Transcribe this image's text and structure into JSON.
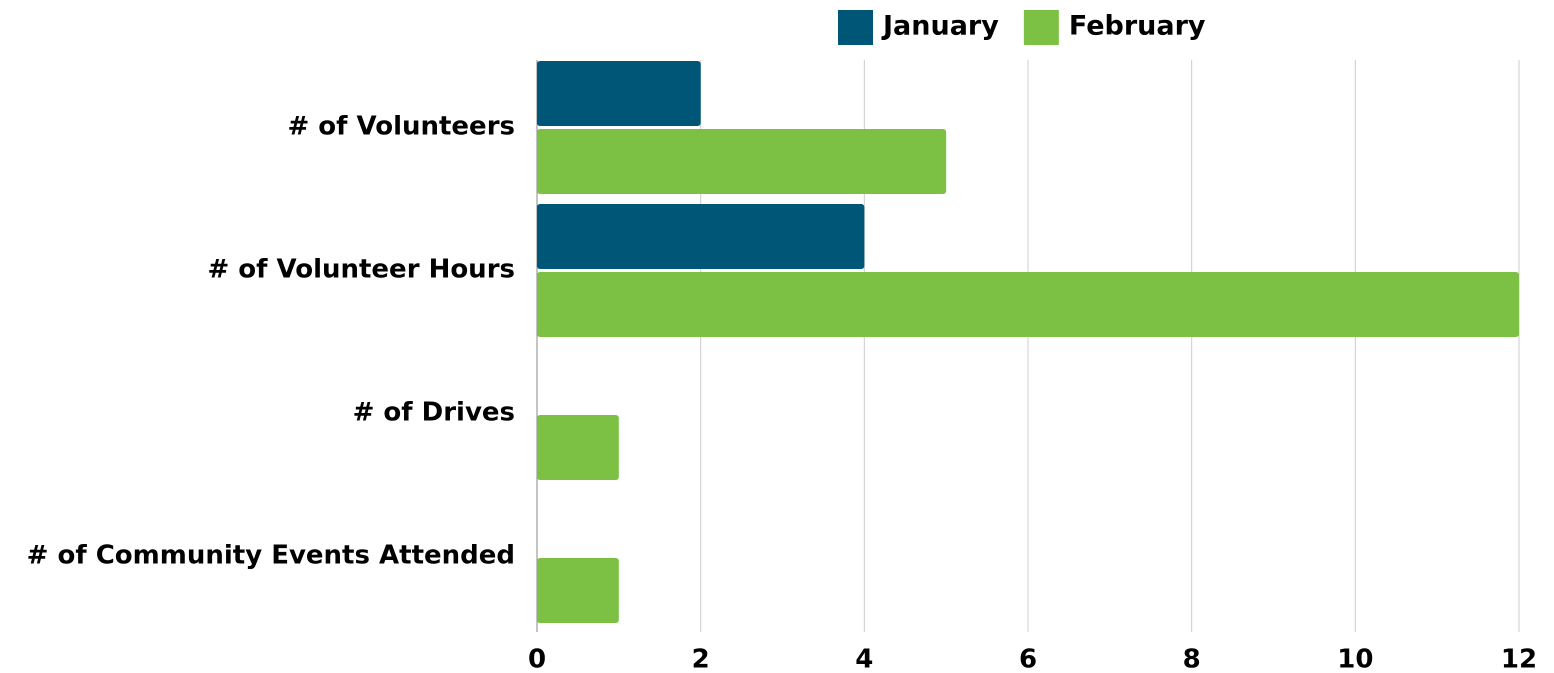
{
  "chart_data": {
    "type": "bar",
    "orientation": "horizontal",
    "categories": [
      "# of Volunteers",
      "# of Volunteer Hours",
      "# of Drives",
      "# of Community Events Attended"
    ],
    "series": [
      {
        "name": "January",
        "color": "#005677",
        "values": [
          2,
          4,
          0,
          0
        ]
      },
      {
        "name": "February",
        "color": "#7cc144",
        "values": [
          5,
          12,
          1,
          1
        ]
      }
    ],
    "xlim": [
      0,
      12
    ],
    "xticks": [
      0,
      2,
      4,
      6,
      8,
      10,
      12
    ],
    "grid": true,
    "legend": "top"
  }
}
